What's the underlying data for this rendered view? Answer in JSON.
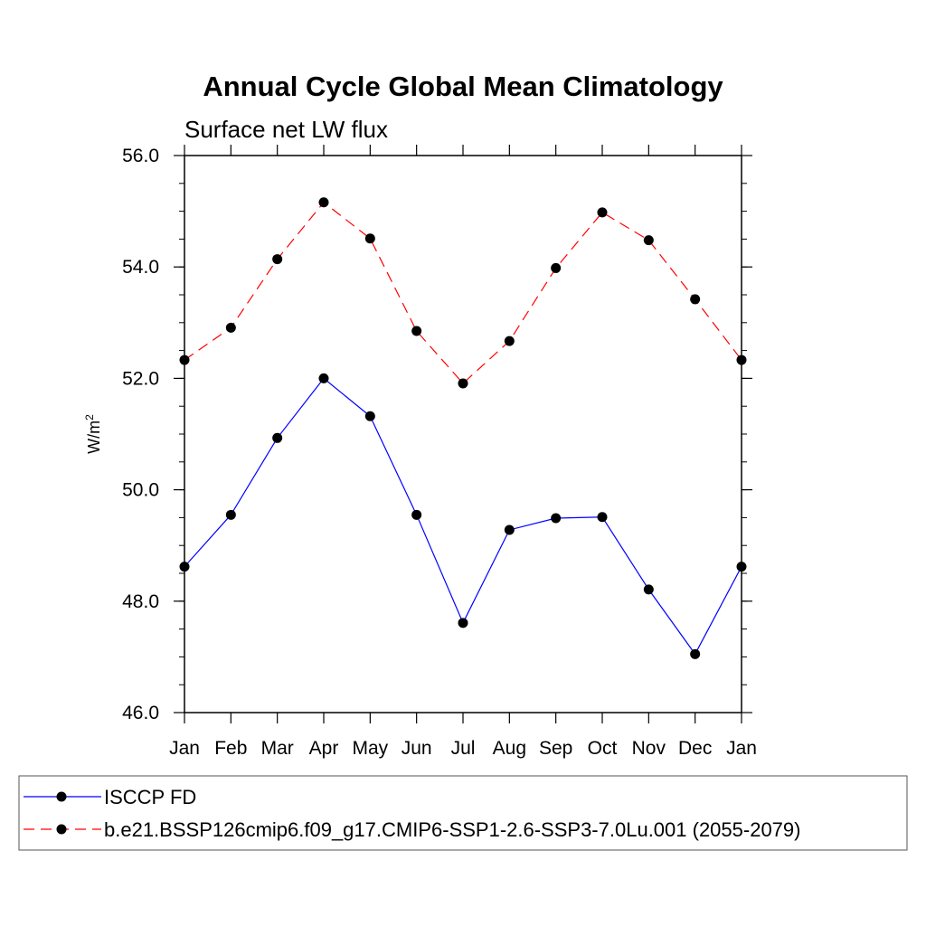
{
  "chart_data": {
    "type": "line",
    "title": "Annual Cycle Global Mean Climatology",
    "subtitle": "Surface net LW flux",
    "xlabel": "",
    "ylabel": "W/m",
    "ylabel_superscript": "2",
    "categories": [
      "Jan",
      "Feb",
      "Mar",
      "Apr",
      "May",
      "Jun",
      "Jul",
      "Aug",
      "Sep",
      "Oct",
      "Nov",
      "Dec",
      "Jan"
    ],
    "ylim": [
      46.0,
      56.0
    ],
    "yticks": [
      "46.0",
      "48.0",
      "50.0",
      "52.0",
      "54.0",
      "56.0"
    ],
    "grid": false,
    "legend_position": "bottom",
    "series": [
      {
        "name": "ISCCP FD",
        "color": "#0000ff",
        "dash": "solid",
        "values": [
          48.62,
          49.55,
          50.93,
          52.0,
          51.32,
          49.55,
          47.61,
          49.28,
          49.49,
          49.51,
          48.21,
          47.05,
          48.62
        ]
      },
      {
        "name": "b.e21.BSSP126cmip6.f09_g17.CMIP6-SSP1-2.6-SSP3-7.0Lu.001 (2055-2079)",
        "color": "#ff0000",
        "dash": "dashed",
        "values": [
          52.33,
          52.91,
          54.14,
          55.16,
          54.51,
          52.85,
          51.91,
          52.67,
          53.98,
          54.98,
          54.48,
          53.42,
          52.33
        ]
      }
    ]
  }
}
